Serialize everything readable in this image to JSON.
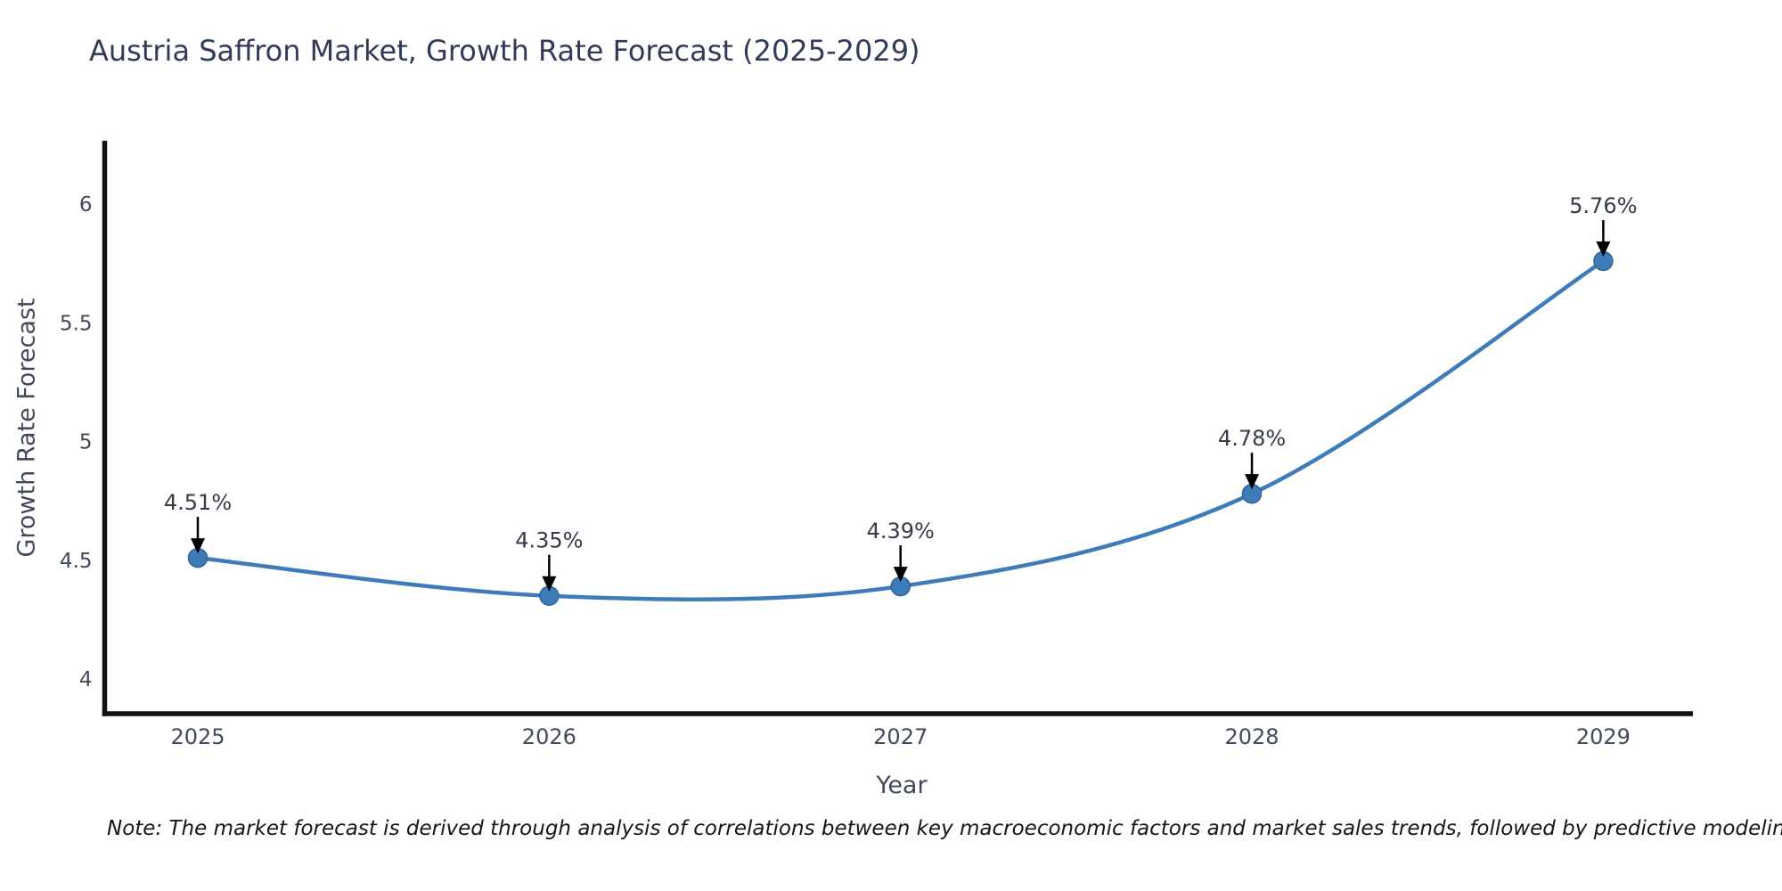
{
  "chart": {
    "title": "Austria Saffron Market, Growth Rate Forecast (2025-2029)",
    "xlabel": "Year",
    "ylabel": "Growth Rate Forecast",
    "note": "Note: The market forecast is derived through analysis of correlations between key macroeconomic factors and market sales trends, followed by predictive modeling to project future sales"
  },
  "chart_data": {
    "type": "line",
    "title": "Austria Saffron Market, Growth Rate Forecast (2025-2029)",
    "xlabel": "Year",
    "ylabel": "Growth Rate Forecast",
    "x": [
      2025,
      2026,
      2027,
      2028,
      2029
    ],
    "series": [
      {
        "name": "Growth Rate Forecast",
        "values": [
          4.51,
          4.35,
          4.39,
          4.78,
          5.76
        ]
      }
    ],
    "point_labels": [
      "4.51%",
      "4.35%",
      "4.39%",
      "4.78%",
      "5.76%"
    ],
    "xticks": [
      "2025",
      "2026",
      "2027",
      "2028",
      "2029"
    ],
    "ytick_values": [
      4,
      4.5,
      5,
      5.5,
      6
    ],
    "ytick_labels": [
      "4",
      "4.5",
      "5",
      "5.5",
      "6"
    ],
    "xlim": [
      2024.73,
      2029.26
    ],
    "ylim": [
      3.84,
      6.27
    ],
    "grid": false,
    "legend": "none",
    "line_shape": "spline",
    "annotations": "arrow-down-to-point",
    "colors": {
      "line": "#3d7cb8",
      "marker_fill": "#3d7cb8",
      "marker_edge": "#2d6699",
      "arrow": "#000000",
      "axis_line": "#111111",
      "tick_label": "#42495a",
      "annotation_label": "#353b49",
      "title": "#2f3b59"
    }
  }
}
